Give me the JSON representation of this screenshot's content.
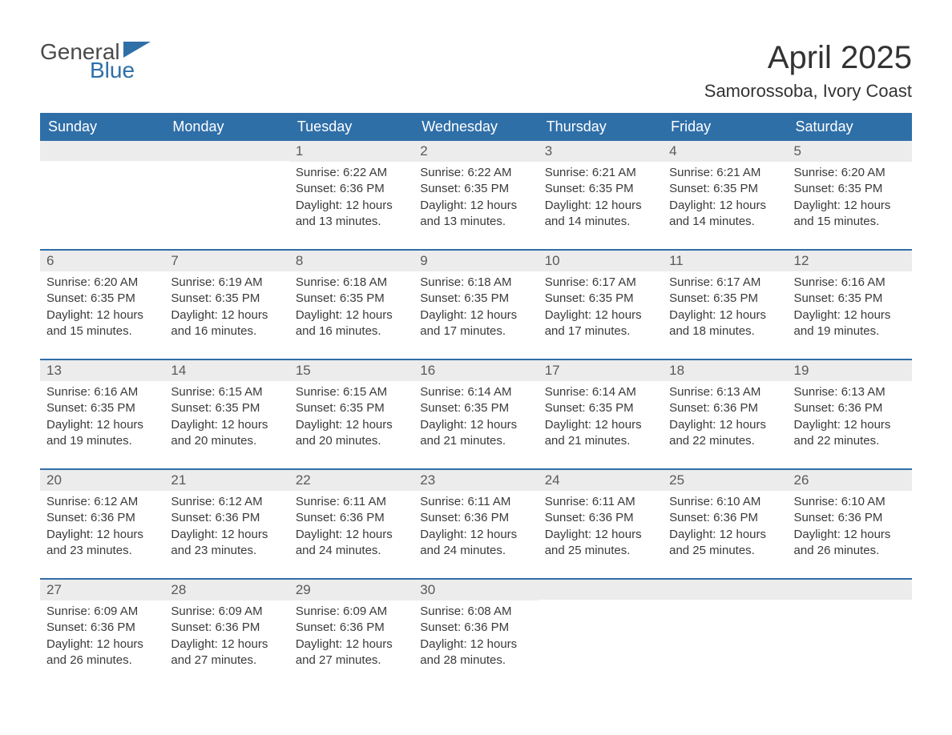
{
  "logo": {
    "word1": "General",
    "word2": "Blue"
  },
  "title": "April 2025",
  "location": "Samorossoba, Ivory Coast",
  "colors": {
    "header_bg": "#2f6fa8",
    "header_text": "#ffffff",
    "date_bar_bg": "#ececec",
    "text": "#3a3a3a",
    "week_border": "#2f6fa8",
    "page_bg": "#ffffff",
    "logo_gray": "#4a4a4a",
    "logo_blue": "#2f6fa8"
  },
  "typography": {
    "title_fontsize": 40,
    "location_fontsize": 22,
    "dayhead_fontsize": 18,
    "date_fontsize": 17,
    "body_fontsize": 15,
    "font_family": "Arial"
  },
  "day_headers": [
    "Sunday",
    "Monday",
    "Tuesday",
    "Wednesday",
    "Thursday",
    "Friday",
    "Saturday"
  ],
  "weeks": [
    [
      {
        "date": "",
        "sunrise": "",
        "sunset": "",
        "daylight": ""
      },
      {
        "date": "",
        "sunrise": "",
        "sunset": "",
        "daylight": ""
      },
      {
        "date": "1",
        "sunrise": "Sunrise: 6:22 AM",
        "sunset": "Sunset: 6:36 PM",
        "daylight": "Daylight: 12 hours and 13 minutes."
      },
      {
        "date": "2",
        "sunrise": "Sunrise: 6:22 AM",
        "sunset": "Sunset: 6:35 PM",
        "daylight": "Daylight: 12 hours and 13 minutes."
      },
      {
        "date": "3",
        "sunrise": "Sunrise: 6:21 AM",
        "sunset": "Sunset: 6:35 PM",
        "daylight": "Daylight: 12 hours and 14 minutes."
      },
      {
        "date": "4",
        "sunrise": "Sunrise: 6:21 AM",
        "sunset": "Sunset: 6:35 PM",
        "daylight": "Daylight: 12 hours and 14 minutes."
      },
      {
        "date": "5",
        "sunrise": "Sunrise: 6:20 AM",
        "sunset": "Sunset: 6:35 PM",
        "daylight": "Daylight: 12 hours and 15 minutes."
      }
    ],
    [
      {
        "date": "6",
        "sunrise": "Sunrise: 6:20 AM",
        "sunset": "Sunset: 6:35 PM",
        "daylight": "Daylight: 12 hours and 15 minutes."
      },
      {
        "date": "7",
        "sunrise": "Sunrise: 6:19 AM",
        "sunset": "Sunset: 6:35 PM",
        "daylight": "Daylight: 12 hours and 16 minutes."
      },
      {
        "date": "8",
        "sunrise": "Sunrise: 6:18 AM",
        "sunset": "Sunset: 6:35 PM",
        "daylight": "Daylight: 12 hours and 16 minutes."
      },
      {
        "date": "9",
        "sunrise": "Sunrise: 6:18 AM",
        "sunset": "Sunset: 6:35 PM",
        "daylight": "Daylight: 12 hours and 17 minutes."
      },
      {
        "date": "10",
        "sunrise": "Sunrise: 6:17 AM",
        "sunset": "Sunset: 6:35 PM",
        "daylight": "Daylight: 12 hours and 17 minutes."
      },
      {
        "date": "11",
        "sunrise": "Sunrise: 6:17 AM",
        "sunset": "Sunset: 6:35 PM",
        "daylight": "Daylight: 12 hours and 18 minutes."
      },
      {
        "date": "12",
        "sunrise": "Sunrise: 6:16 AM",
        "sunset": "Sunset: 6:35 PM",
        "daylight": "Daylight: 12 hours and 19 minutes."
      }
    ],
    [
      {
        "date": "13",
        "sunrise": "Sunrise: 6:16 AM",
        "sunset": "Sunset: 6:35 PM",
        "daylight": "Daylight: 12 hours and 19 minutes."
      },
      {
        "date": "14",
        "sunrise": "Sunrise: 6:15 AM",
        "sunset": "Sunset: 6:35 PM",
        "daylight": "Daylight: 12 hours and 20 minutes."
      },
      {
        "date": "15",
        "sunrise": "Sunrise: 6:15 AM",
        "sunset": "Sunset: 6:35 PM",
        "daylight": "Daylight: 12 hours and 20 minutes."
      },
      {
        "date": "16",
        "sunrise": "Sunrise: 6:14 AM",
        "sunset": "Sunset: 6:35 PM",
        "daylight": "Daylight: 12 hours and 21 minutes."
      },
      {
        "date": "17",
        "sunrise": "Sunrise: 6:14 AM",
        "sunset": "Sunset: 6:35 PM",
        "daylight": "Daylight: 12 hours and 21 minutes."
      },
      {
        "date": "18",
        "sunrise": "Sunrise: 6:13 AM",
        "sunset": "Sunset: 6:36 PM",
        "daylight": "Daylight: 12 hours and 22 minutes."
      },
      {
        "date": "19",
        "sunrise": "Sunrise: 6:13 AM",
        "sunset": "Sunset: 6:36 PM",
        "daylight": "Daylight: 12 hours and 22 minutes."
      }
    ],
    [
      {
        "date": "20",
        "sunrise": "Sunrise: 6:12 AM",
        "sunset": "Sunset: 6:36 PM",
        "daylight": "Daylight: 12 hours and 23 minutes."
      },
      {
        "date": "21",
        "sunrise": "Sunrise: 6:12 AM",
        "sunset": "Sunset: 6:36 PM",
        "daylight": "Daylight: 12 hours and 23 minutes."
      },
      {
        "date": "22",
        "sunrise": "Sunrise: 6:11 AM",
        "sunset": "Sunset: 6:36 PM",
        "daylight": "Daylight: 12 hours and 24 minutes."
      },
      {
        "date": "23",
        "sunrise": "Sunrise: 6:11 AM",
        "sunset": "Sunset: 6:36 PM",
        "daylight": "Daylight: 12 hours and 24 minutes."
      },
      {
        "date": "24",
        "sunrise": "Sunrise: 6:11 AM",
        "sunset": "Sunset: 6:36 PM",
        "daylight": "Daylight: 12 hours and 25 minutes."
      },
      {
        "date": "25",
        "sunrise": "Sunrise: 6:10 AM",
        "sunset": "Sunset: 6:36 PM",
        "daylight": "Daylight: 12 hours and 25 minutes."
      },
      {
        "date": "26",
        "sunrise": "Sunrise: 6:10 AM",
        "sunset": "Sunset: 6:36 PM",
        "daylight": "Daylight: 12 hours and 26 minutes."
      }
    ],
    [
      {
        "date": "27",
        "sunrise": "Sunrise: 6:09 AM",
        "sunset": "Sunset: 6:36 PM",
        "daylight": "Daylight: 12 hours and 26 minutes."
      },
      {
        "date": "28",
        "sunrise": "Sunrise: 6:09 AM",
        "sunset": "Sunset: 6:36 PM",
        "daylight": "Daylight: 12 hours and 27 minutes."
      },
      {
        "date": "29",
        "sunrise": "Sunrise: 6:09 AM",
        "sunset": "Sunset: 6:36 PM",
        "daylight": "Daylight: 12 hours and 27 minutes."
      },
      {
        "date": "30",
        "sunrise": "Sunrise: 6:08 AM",
        "sunset": "Sunset: 6:36 PM",
        "daylight": "Daylight: 12 hours and 28 minutes."
      },
      {
        "date": "",
        "sunrise": "",
        "sunset": "",
        "daylight": ""
      },
      {
        "date": "",
        "sunrise": "",
        "sunset": "",
        "daylight": ""
      },
      {
        "date": "",
        "sunrise": "",
        "sunset": "",
        "daylight": ""
      }
    ]
  ]
}
